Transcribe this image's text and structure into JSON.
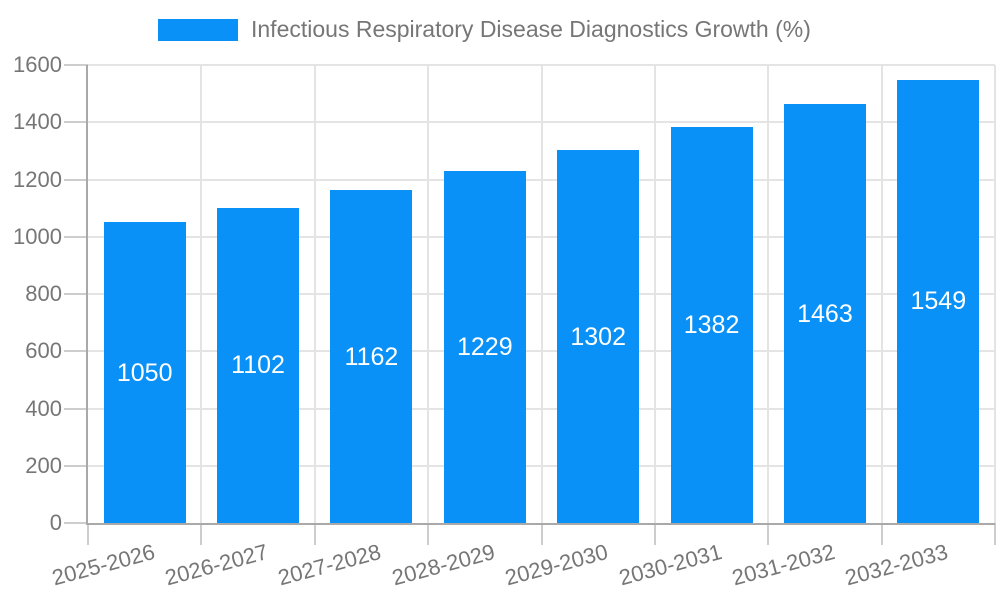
{
  "chart_data": {
    "type": "bar",
    "title": "Infectious Respiratory Disease Diagnostics Growth (%)",
    "categories": [
      "2025-2026",
      "2026-2027",
      "2027-2028",
      "2028-2029",
      "2029-2030",
      "2030-2031",
      "2031-2032",
      "2032-2033"
    ],
    "values": [
      1050,
      1102,
      1162,
      1229,
      1302,
      1382,
      1463,
      1549
    ],
    "xlabel": "",
    "ylabel": "",
    "ylim": [
      0,
      1600
    ],
    "yticks": [
      0,
      200,
      400,
      600,
      800,
      1000,
      1200,
      1400,
      1600
    ],
    "grid": true,
    "legend_position": "top-center",
    "value_labels_inside_bars": true,
    "colors": {
      "bar": "#0a91f8",
      "grid": "#e4e4e4",
      "axis": "#a9a9a9",
      "tick": "#cdcdcd",
      "label_text": "#767676",
      "value_text": "#ffffff",
      "background": "#ffffff"
    }
  }
}
